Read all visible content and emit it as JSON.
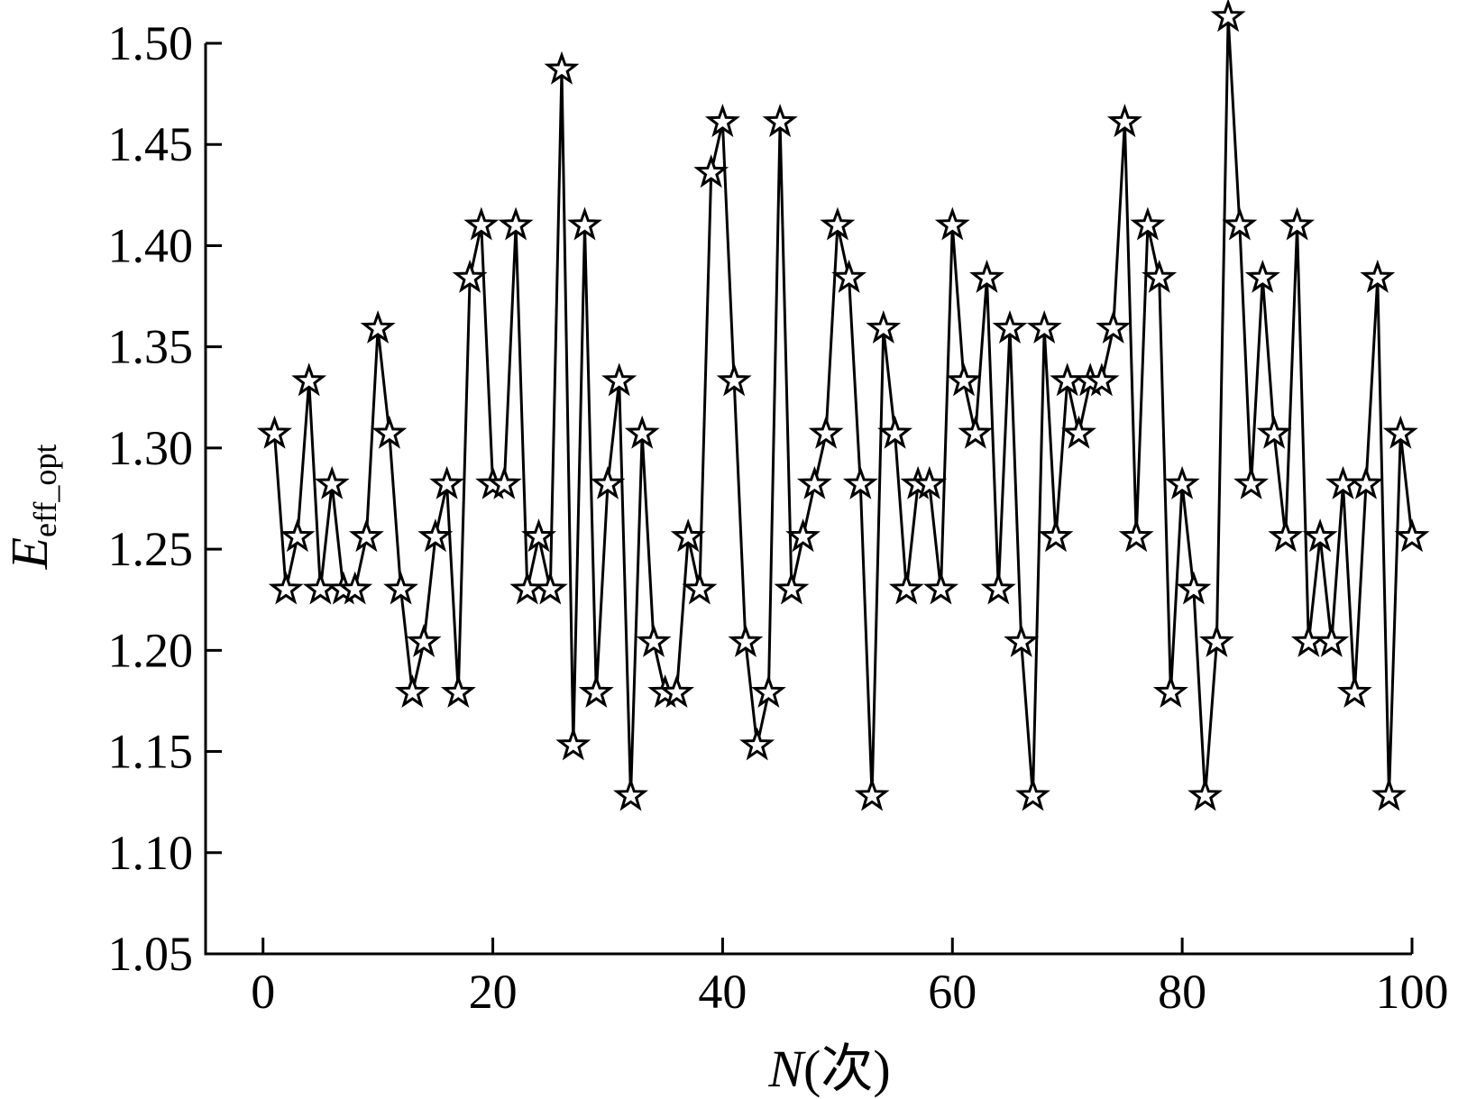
{
  "chart_data": {
    "type": "line",
    "xlabel": {
      "var": "N",
      "unit": "(次)"
    },
    "ylabel": {
      "base": "E",
      "sub": "eff_opt"
    },
    "xlim": [
      -5,
      100
    ],
    "ylim": [
      1.05,
      1.5
    ],
    "xticks": [
      "0",
      "20",
      "40",
      "60",
      "80",
      "100"
    ],
    "yticks": [
      "1.05",
      "1.10",
      "1.15",
      "1.20",
      "1.25",
      "1.30",
      "1.35",
      "1.40",
      "1.45",
      "1.50"
    ],
    "marker": "star",
    "line_color": "#000000",
    "series": [
      {
        "x": [
          1,
          2,
          3,
          4,
          5,
          6,
          7,
          8,
          9,
          10,
          11,
          12,
          13,
          14,
          15,
          16,
          17,
          18,
          19,
          20,
          21,
          22,
          23,
          24,
          25,
          26,
          27,
          28,
          29,
          30,
          31,
          32,
          33,
          34,
          35,
          36,
          37,
          38,
          39,
          40,
          41,
          42,
          43,
          44,
          45,
          46,
          47,
          48,
          49,
          50,
          51,
          52,
          53,
          54,
          55,
          56,
          57,
          58,
          59,
          60,
          61,
          62,
          63,
          64,
          65,
          66,
          67,
          68,
          69,
          70,
          71,
          72,
          73,
          74,
          75,
          76,
          77,
          78,
          79,
          80,
          81,
          82,
          83,
          84,
          85,
          86,
          87,
          88,
          89,
          90,
          91,
          92,
          93,
          94,
          95,
          96,
          97,
          98,
          99,
          100
        ],
        "values": [
          1.307,
          1.23,
          1.256,
          1.333,
          1.23,
          1.282,
          1.23,
          1.23,
          1.256,
          1.359,
          1.307,
          1.23,
          1.179,
          1.204,
          1.256,
          1.282,
          1.179,
          1.384,
          1.41,
          1.282,
          1.282,
          1.41,
          1.23,
          1.256,
          1.23,
          1.487,
          1.153,
          1.41,
          1.179,
          1.282,
          1.333,
          1.128,
          1.307,
          1.204,
          1.179,
          1.179,
          1.256,
          1.23,
          1.436,
          1.461,
          1.333,
          1.204,
          1.153,
          1.179,
          1.461,
          1.23,
          1.256,
          1.282,
          1.307,
          1.41,
          1.384,
          1.282,
          1.128,
          1.359,
          1.307,
          1.23,
          1.282,
          1.282,
          1.23,
          1.41,
          1.333,
          1.307,
          1.384,
          1.23,
          1.359,
          1.204,
          1.128,
          1.359,
          1.256,
          1.333,
          1.307,
          1.333,
          1.333,
          1.359,
          1.461,
          1.256,
          1.41,
          1.384,
          1.179,
          1.282,
          1.23,
          1.128,
          1.204,
          1.513,
          1.41,
          1.282,
          1.384,
          1.307,
          1.256,
          1.41,
          1.204,
          1.256,
          1.204,
          1.282,
          1.179,
          1.282,
          1.384,
          1.128,
          1.307,
          1.256
        ]
      }
    ]
  }
}
